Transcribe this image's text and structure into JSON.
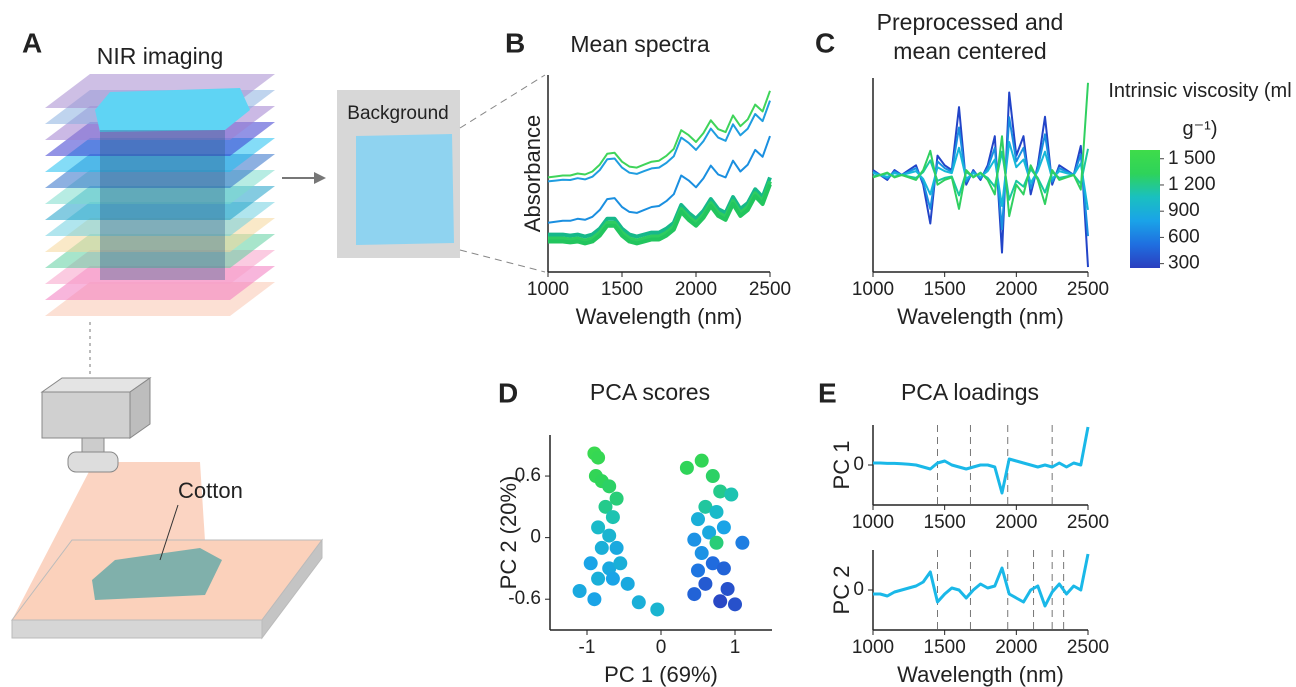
{
  "diagram": {
    "label": "A",
    "title": "NIR imaging",
    "background": "Background",
    "sample": "Cotton"
  },
  "chart_data": [
    {
      "type": "line",
      "label": "B",
      "title": "Mean spectra",
      "x_label": "Wavelength (nm)",
      "y_label": "Absorbance",
      "x": [
        1000,
        1050,
        1100,
        1150,
        1200,
        1250,
        1300,
        1350,
        1400,
        1450,
        1500,
        1550,
        1600,
        1650,
        1700,
        1750,
        1800,
        1850,
        1900,
        1950,
        2000,
        2050,
        2100,
        2150,
        2200,
        2250,
        2300,
        2350,
        2400,
        2450,
        2500
      ],
      "xlim": [
        1000,
        2500
      ],
      "xticks": [
        1000,
        1500,
        2000,
        2500
      ],
      "ylim": [
        0,
        1
      ],
      "series": [
        {
          "color": "#3fd45a",
          "width": 2,
          "values": [
            0.48,
            0.485,
            0.49,
            0.49,
            0.5,
            0.495,
            0.51,
            0.545,
            0.6,
            0.605,
            0.56,
            0.535,
            0.53,
            0.545,
            0.56,
            0.565,
            0.59,
            0.625,
            0.72,
            0.695,
            0.66,
            0.705,
            0.77,
            0.725,
            0.71,
            0.795,
            0.74,
            0.775,
            0.85,
            0.815,
            0.92
          ]
        },
        {
          "color": "#1f9de0",
          "width": 2,
          "values": [
            0.46,
            0.464,
            0.468,
            0.467,
            0.476,
            0.47,
            0.484,
            0.518,
            0.572,
            0.576,
            0.53,
            0.504,
            0.498,
            0.512,
            0.526,
            0.53,
            0.554,
            0.588,
            0.682,
            0.656,
            0.62,
            0.664,
            0.728,
            0.682,
            0.666,
            0.75,
            0.694,
            0.728,
            0.802,
            0.766,
            0.87
          ]
        },
        {
          "color": "#1a8fe0",
          "width": 2,
          "values": [
            0.25,
            0.255,
            0.26,
            0.26,
            0.27,
            0.265,
            0.28,
            0.315,
            0.37,
            0.375,
            0.33,
            0.305,
            0.3,
            0.315,
            0.33,
            0.335,
            0.36,
            0.395,
            0.49,
            0.465,
            0.43,
            0.475,
            0.54,
            0.495,
            0.48,
            0.565,
            0.51,
            0.545,
            0.62,
            0.585,
            0.69
          ]
        },
        {
          "color": "#16b88a",
          "width": 4,
          "values": [
            0.19,
            0.19,
            0.19,
            0.185,
            0.19,
            0.18,
            0.19,
            0.22,
            0.27,
            0.27,
            0.22,
            0.19,
            0.18,
            0.19,
            0.2,
            0.2,
            0.22,
            0.25,
            0.34,
            0.3,
            0.27,
            0.31,
            0.37,
            0.32,
            0.3,
            0.38,
            0.32,
            0.35,
            0.42,
            0.38,
            0.48
          ]
        },
        {
          "color": "#2ecc60",
          "width": 4,
          "values": [
            0.17,
            0.17,
            0.17,
            0.165,
            0.17,
            0.16,
            0.17,
            0.2,
            0.25,
            0.25,
            0.2,
            0.17,
            0.16,
            0.17,
            0.18,
            0.18,
            0.2,
            0.23,
            0.32,
            0.28,
            0.25,
            0.29,
            0.35,
            0.3,
            0.28,
            0.36,
            0.3,
            0.33,
            0.4,
            0.36,
            0.46
          ]
        },
        {
          "color": "#22c55e",
          "width": 4,
          "values": [
            0.155,
            0.155,
            0.155,
            0.15,
            0.155,
            0.145,
            0.155,
            0.185,
            0.235,
            0.235,
            0.185,
            0.155,
            0.145,
            0.155,
            0.165,
            0.165,
            0.185,
            0.215,
            0.305,
            0.265,
            0.235,
            0.275,
            0.335,
            0.285,
            0.265,
            0.345,
            0.285,
            0.315,
            0.385,
            0.345,
            0.445
          ]
        }
      ]
    },
    {
      "type": "line",
      "label": "C",
      "title": "Preprocessed and mean centered",
      "x_label": "Wavelength (nm)",
      "x": [
        1000,
        1050,
        1100,
        1150,
        1200,
        1250,
        1300,
        1350,
        1400,
        1450,
        1500,
        1550,
        1600,
        1650,
        1700,
        1750,
        1800,
        1850,
        1900,
        1950,
        2000,
        2050,
        2100,
        2150,
        2200,
        2250,
        2300,
        2350,
        2400,
        2450,
        2500
      ],
      "xlim": [
        1000,
        2500
      ],
      "xticks": [
        1000,
        1500,
        2000,
        2500
      ],
      "ylim": [
        -1,
        1
      ],
      "series": [
        {
          "color": "#2244c8",
          "width": 2,
          "values": [
            0.05,
            0,
            -0.05,
            0.05,
            0,
            0.05,
            0.1,
            -0.1,
            -0.5,
            0.2,
            0.1,
            0.05,
            0.7,
            -0.1,
            0.05,
            -0.05,
            0.1,
            0.4,
            -0.8,
            0.85,
            0.2,
            0.4,
            -0.2,
            0.1,
            0.6,
            -0.1,
            0.1,
            0.05,
            0,
            0.3,
            -0.95
          ]
        },
        {
          "color": "#1a8fe0",
          "width": 2,
          "values": [
            0.035,
            0,
            -0.035,
            0.035,
            0,
            0.035,
            0.07,
            -0.07,
            -0.35,
            0.14,
            0.07,
            0.035,
            0.49,
            -0.07,
            0.035,
            -0.035,
            0.07,
            0.28,
            -0.56,
            0.595,
            0.14,
            0.28,
            -0.14,
            0.07,
            0.42,
            -0.07,
            0.07,
            0.035,
            0,
            0.21,
            -0.63
          ]
        },
        {
          "color": "#16b8d8",
          "width": 2,
          "values": [
            0.02,
            0,
            -0.02,
            0.02,
            0,
            0.02,
            0.04,
            -0.04,
            -0.2,
            0.08,
            0.04,
            0.02,
            0.28,
            -0.04,
            0.02,
            -0.02,
            0.04,
            0.16,
            -0.32,
            0.34,
            0.08,
            0.16,
            -0.08,
            0.04,
            0.24,
            -0.04,
            0.04,
            0.02,
            0,
            0.12,
            -0.36
          ]
        },
        {
          "color": "#19c8a0",
          "width": 2,
          "values": [
            -0.015,
            0,
            0.015,
            -0.015,
            0,
            -0.015,
            -0.03,
            0.03,
            0.15,
            -0.06,
            -0.03,
            -0.015,
            -0.21,
            0.03,
            -0.015,
            0.015,
            -0.03,
            -0.12,
            0.24,
            -0.255,
            -0.06,
            -0.12,
            0.06,
            -0.03,
            -0.18,
            0.03,
            -0.03,
            -0.015,
            0,
            -0.09,
            0.27
          ]
        },
        {
          "color": "#30d060",
          "width": 2,
          "values": [
            -0.025,
            0,
            0.025,
            -0.025,
            0,
            -0.025,
            -0.05,
            0.05,
            0.25,
            -0.1,
            -0.05,
            -0.025,
            -0.35,
            0.05,
            -0.025,
            0.025,
            -0.05,
            -0.2,
            0.4,
            -0.425,
            -0.1,
            -0.2,
            0.1,
            -0.05,
            -0.3,
            0.05,
            -0.05,
            -0.025,
            0,
            -0.15,
            0.95
          ]
        }
      ],
      "colorbar": {
        "title": "Intrinsic viscosity (ml g⁻¹)",
        "lim": [
          250,
          1600
        ],
        "colors": [
          "#2b3fbf",
          "#1f6fe0",
          "#1aa3e8",
          "#1ac0c0",
          "#2ed35a",
          "#3fdc4a"
        ],
        "ticks": [
          {
            "value": 1500,
            "label": "1 500"
          },
          {
            "value": 1200,
            "label": "1 200"
          },
          900,
          600,
          300
        ]
      }
    },
    {
      "type": "scatter",
      "label": "D",
      "title": "PCA scores",
      "x_label": "PC 1 (69%)",
      "y_label": "PC 2 (20%)",
      "xlim": [
        -1.5,
        1.5
      ],
      "xticks": [
        -1,
        0,
        1
      ],
      "ylim": [
        -0.9,
        1.0
      ],
      "yticks": [
        -0.6,
        0,
        0.6
      ],
      "x": [
        -0.9,
        -0.85,
        -0.88,
        -0.8,
        -0.7,
        -0.6,
        -0.75,
        -0.65,
        -0.85,
        -0.7,
        -0.8,
        -0.6,
        -0.95,
        -0.7,
        -0.55,
        -0.85,
        -0.65,
        -0.45,
        -1.1,
        -0.9,
        -0.3,
        -0.05,
        0.55,
        0.35,
        0.7,
        0.8,
        0.95,
        0.6,
        0.75,
        0.5,
        0.85,
        0.65,
        0.45,
        0.75,
        0.55,
        1.1,
        0.7,
        0.5,
        0.85,
        0.6,
        0.9,
        0.8,
        1.0,
        0.45
      ],
      "y": [
        0.82,
        0.78,
        0.6,
        0.55,
        0.5,
        0.38,
        0.3,
        0.2,
        0.1,
        0.02,
        -0.1,
        -0.1,
        -0.25,
        -0.3,
        -0.25,
        -0.4,
        -0.4,
        -0.45,
        -0.52,
        -0.6,
        -0.63,
        -0.7,
        0.75,
        0.68,
        0.6,
        0.45,
        0.42,
        0.3,
        0.25,
        0.18,
        0.1,
        0.05,
        -0.02,
        -0.05,
        -0.15,
        -0.05,
        -0.25,
        -0.32,
        -0.3,
        -0.45,
        -0.5,
        -0.62,
        -0.65,
        -0.55
      ],
      "viscosity": [
        1500,
        1450,
        1400,
        1350,
        1300,
        1250,
        1200,
        1100,
        1000,
        950,
        900,
        850,
        800,
        850,
        900,
        900,
        800,
        850,
        850,
        800,
        900,
        950,
        1400,
        1350,
        1300,
        1200,
        1100,
        1150,
        1000,
        900,
        800,
        850,
        700,
        1250,
        700,
        600,
        500,
        550,
        450,
        400,
        350,
        300,
        350,
        450
      ]
    },
    {
      "type": "line",
      "label": "E",
      "title": "PCA loadings",
      "y_label": "PC 1",
      "x": [
        1000,
        1050,
        1100,
        1150,
        1200,
        1250,
        1300,
        1350,
        1400,
        1450,
        1500,
        1550,
        1600,
        1650,
        1700,
        1750,
        1800,
        1850,
        1900,
        1950,
        2000,
        2050,
        2100,
        2150,
        2200,
        2250,
        2300,
        2350,
        2400,
        2450,
        2500
      ],
      "xlim": [
        1000,
        2500
      ],
      "xticks": [
        1000,
        1500,
        2000,
        2500
      ],
      "ylim": [
        -1,
        1
      ],
      "yticks": [
        0
      ],
      "vlines": [
        1450,
        1680,
        1940,
        2250
      ],
      "series": [
        {
          "color": "#1ab8e8",
          "width": 3,
          "values": [
            0.05,
            0.05,
            0.04,
            0.04,
            0.03,
            0.02,
            0,
            -0.05,
            -0.1,
            0.05,
            0.1,
            0,
            -0.05,
            -0.1,
            -0.05,
            0,
            0,
            -0.05,
            -0.7,
            0.15,
            0.1,
            0.05,
            0,
            -0.05,
            0,
            -0.05,
            0.05,
            -0.05,
            0.05,
            0,
            0.95
          ]
        }
      ]
    },
    {
      "type": "line",
      "y_label": "PC 2",
      "x_label": "Wavelength (nm)",
      "x": [
        1000,
        1050,
        1100,
        1150,
        1200,
        1250,
        1300,
        1350,
        1400,
        1450,
        1500,
        1550,
        1600,
        1650,
        1700,
        1750,
        1800,
        1850,
        1900,
        1950,
        2000,
        2050,
        2100,
        2150,
        2200,
        2250,
        2300,
        2350,
        2400,
        2450,
        2500
      ],
      "xlim": [
        1000,
        2500
      ],
      "xticks": [
        1000,
        1500,
        2000,
        2500
      ],
      "ylim": [
        -1,
        1
      ],
      "yticks": [
        0
      ],
      "vlines": [
        1450,
        1680,
        1940,
        2120,
        2250,
        2330
      ],
      "series": [
        {
          "color": "#1ab8e8",
          "width": 3,
          "values": [
            -0.1,
            -0.1,
            -0.15,
            -0.05,
            0,
            0.05,
            0.1,
            0.2,
            0.45,
            -0.3,
            -0.1,
            0.05,
            0,
            -0.2,
            0,
            0.15,
            0.05,
            0.1,
            0.55,
            -0.1,
            -0.2,
            -0.3,
            0,
            0.1,
            -0.4,
            -0.05,
            0.15,
            -0.1,
            0.1,
            0,
            0.9
          ]
        }
      ]
    }
  ]
}
